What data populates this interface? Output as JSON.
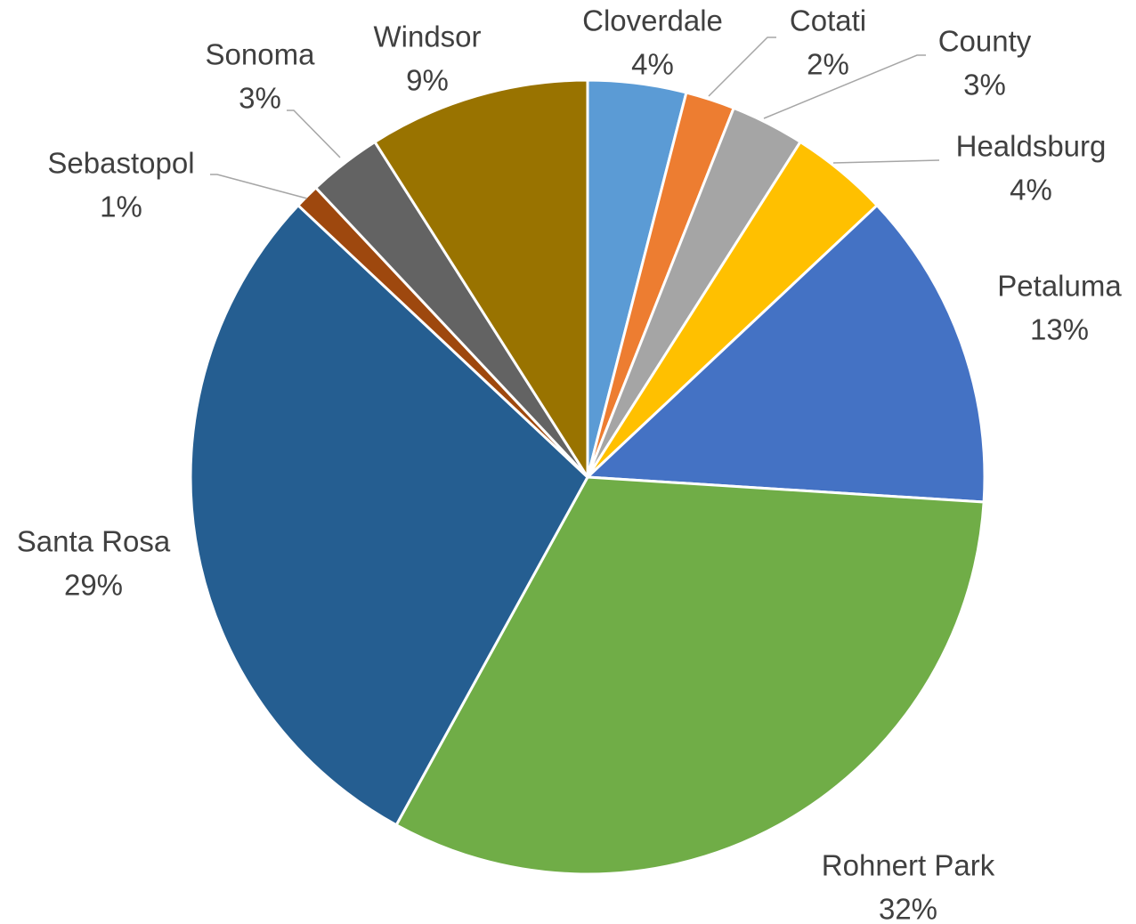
{
  "chart_data": {
    "type": "pie",
    "start_angle_deg": 0,
    "direction": "clockwise",
    "slices": [
      {
        "label": "Cloverdale",
        "value": 4,
        "percent_label": "4%",
        "color": "#5B9BD5"
      },
      {
        "label": "Cotati",
        "value": 2,
        "percent_label": "2%",
        "color": "#ED7D31"
      },
      {
        "label": "County",
        "value": 3,
        "percent_label": "3%",
        "color": "#A5A5A5"
      },
      {
        "label": "Healdsburg",
        "value": 4,
        "percent_label": "4%",
        "color": "#FFC000"
      },
      {
        "label": "Petaluma",
        "value": 13,
        "percent_label": "13%",
        "color": "#4472C4"
      },
      {
        "label": "Rohnert Park",
        "value": 32,
        "percent_label": "32%",
        "color": "#70AD47"
      },
      {
        "label": "Santa Rosa",
        "value": 29,
        "percent_label": "29%",
        "color": "#255E91"
      },
      {
        "label": "Sebastopol",
        "value": 1,
        "percent_label": "1%",
        "color": "#9E480E"
      },
      {
        "label": "Sonoma",
        "value": 3,
        "percent_label": "3%",
        "color": "#636363"
      },
      {
        "label": "Windsor",
        "value": 9,
        "percent_label": "9%",
        "color": "#997300"
      }
    ]
  }
}
